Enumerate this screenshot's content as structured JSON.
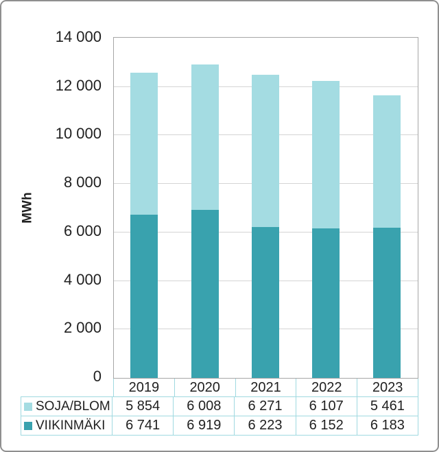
{
  "chart_data": {
    "type": "bar",
    "stacked": true,
    "title": "",
    "xlabel": "",
    "ylabel": "MWh",
    "ylim": [
      0,
      14000
    ],
    "ytick_step": 2000,
    "ytick_labels": [
      "0",
      "2 000",
      "4 000",
      "6 000",
      "8 000",
      "10 000",
      "12 000",
      "14 000"
    ],
    "grid": true,
    "legend_position": "table-left",
    "categories": [
      "2019",
      "2020",
      "2021",
      "2022",
      "2023"
    ],
    "series": [
      {
        "name": "VIIKINMÄKI",
        "color": "#39a2ae",
        "values": [
          6741,
          6919,
          6223,
          6152,
          6183
        ]
      },
      {
        "name": "SOJA/BLOM",
        "color": "#a4dce2",
        "values": [
          5854,
          6008,
          6271,
          6107,
          5461
        ]
      }
    ]
  },
  "table": {
    "rows": [
      {
        "label": "SOJA/BLOM",
        "swatch_color": "#a4dce2",
        "values": [
          "5 854",
          "6 008",
          "6 271",
          "6 107",
          "5 461"
        ]
      },
      {
        "label": "VIIKINMÄKI",
        "swatch_color": "#39a2ae",
        "values": [
          "6 741",
          "6 919",
          "6 223",
          "6 152",
          "6 183"
        ]
      }
    ]
  },
  "colors": {
    "grid": "#d4d4d4",
    "plot_border": "#a6a6a6",
    "table_border": "#9fd9e0",
    "frame_border": "#8f8f8f",
    "text": "#1f1f1f"
  }
}
